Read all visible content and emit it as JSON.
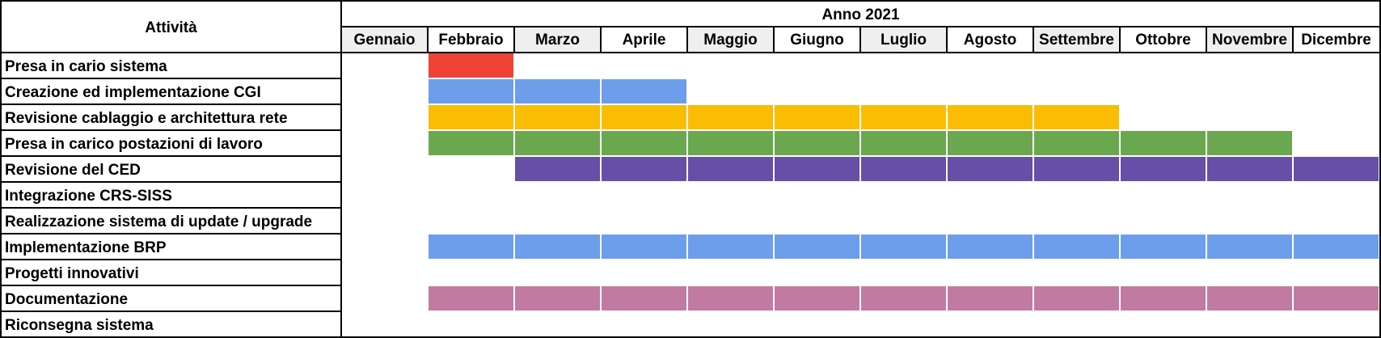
{
  "header": {
    "activity_column": "Attività",
    "year_label": "Anno 2021"
  },
  "chart_data": {
    "type": "gantt",
    "months": [
      "Gennaio",
      "Febbraio",
      "Marzo",
      "Aprile",
      "Maggio",
      "Giugno",
      "Luglio",
      "Agosto",
      "Settembre",
      "Ottobre",
      "Novembre",
      "Dicembre"
    ],
    "shaded_months": [
      "Gennaio",
      "Marzo",
      "Maggio",
      "Luglio",
      "Settembre",
      "Novembre"
    ],
    "tasks": [
      {
        "name": "Presa in cario sistema",
        "start_month": 2,
        "end_month": 2,
        "color": "#ee4235"
      },
      {
        "name": "Creazione ed implementazione CGI",
        "start_month": 2,
        "end_month": 4,
        "color": "#6d9eeb"
      },
      {
        "name": "Revisione cablaggio e architettura rete",
        "start_month": 2,
        "end_month": 9,
        "color": "#fbbc04"
      },
      {
        "name": "Presa in carico postazioni di lavoro",
        "start_month": 2,
        "end_month": 11,
        "color": "#6aa84f"
      },
      {
        "name": "Revisione del CED",
        "start_month": 3,
        "end_month": 12,
        "color": "#674ea7"
      },
      {
        "name": "Integrazione CRS-SISS",
        "start_month": null,
        "end_month": null,
        "color": null
      },
      {
        "name": "Realizzazione sistema di update / upgrade",
        "start_month": null,
        "end_month": null,
        "color": null
      },
      {
        "name": "Implementazione BRP",
        "start_month": 2,
        "end_month": 12,
        "color": "#6d9eeb"
      },
      {
        "name": "Progetti innovativi",
        "start_month": null,
        "end_month": null,
        "color": null
      },
      {
        "name": "Documentazione",
        "start_month": 2,
        "end_month": 12,
        "color": "#c27ba0"
      },
      {
        "name": "Riconsegna sistema",
        "start_month": null,
        "end_month": null,
        "color": null
      }
    ]
  }
}
